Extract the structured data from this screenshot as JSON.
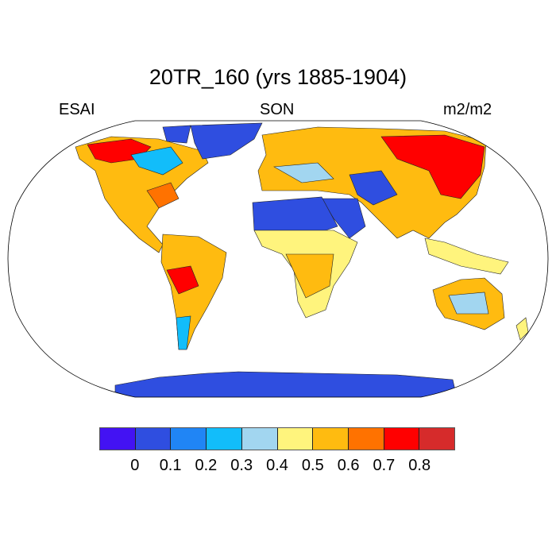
{
  "title": "20TR_160 (yrs 1885-1904)",
  "left_label": "ESAI",
  "center_label": "SON",
  "right_label": "m2/m2",
  "colorbar": {
    "colors": [
      "#4312f3",
      "#2f4ee0",
      "#2085f5",
      "#12bdfa",
      "#a2d6f0",
      "#fff47d",
      "#ffbb10",
      "#ff7200",
      "#ff0000",
      "#d62b2b"
    ],
    "labels": [
      "0",
      "0.1",
      "0.2",
      "0.3",
      "0.4",
      "0.5",
      "0.6",
      "0.7",
      "0.8"
    ]
  }
}
